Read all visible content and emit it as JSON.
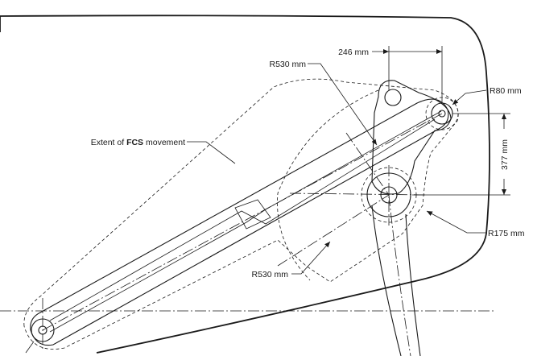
{
  "annotations": {
    "dim_246": "246 mm",
    "dim_r530_top": "R530 mm",
    "dim_r80": "R80 mm",
    "extent_prefix": "Extent of ",
    "extent_bold": "FCS",
    "extent_suffix": " movement",
    "dim_377": "377 mm",
    "dim_r175": "R175 mm",
    "dim_r530_bottom": "R530 mm"
  }
}
